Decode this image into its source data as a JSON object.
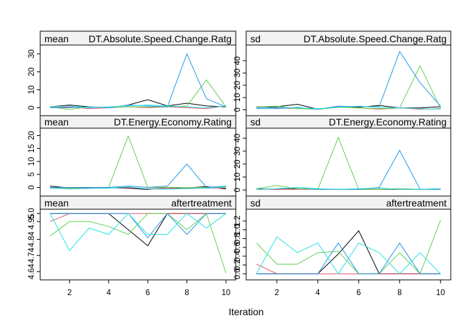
{
  "figure": {
    "xlabel": "Iteration"
  },
  "palette": [
    "#000000",
    "#DF536B",
    "#61D04F",
    "#2297E6",
    "#28E2E5"
  ],
  "chart_data": [
    {
      "type": "line",
      "stat": "mean",
      "variable": "DT.Absolute.Speed.Change.Ratg",
      "x": [
        1,
        2,
        3,
        4,
        5,
        6,
        7,
        8,
        9,
        10
      ],
      "xticks": [
        "2",
        "4",
        "6",
        "8",
        "10"
      ],
      "xlim": [
        0.5,
        10.5
      ],
      "ylim": [
        -2.5,
        33
      ],
      "yticks": [
        "0",
        "10",
        "20",
        "30"
      ],
      "series": [
        {
          "values": [
            0.5,
            1.5,
            0.5,
            0.0,
            1.5,
            4.5,
            1.0,
            2.5,
            1.0,
            0.5
          ]
        },
        {
          "values": [
            0.0,
            0.5,
            -0.5,
            0.0,
            0.5,
            0.0,
            0.5,
            0.0,
            -0.5,
            1.0
          ]
        },
        {
          "values": [
            0.5,
            -1.0,
            0.5,
            0.0,
            0.5,
            0.5,
            0.5,
            1.0,
            15.5,
            0.5
          ]
        },
        {
          "values": [
            0.0,
            0.0,
            0.5,
            0.0,
            1.5,
            1.0,
            0.5,
            30.0,
            5.0,
            0.5
          ]
        },
        {
          "values": [
            0.5,
            1.0,
            0.0,
            0.5,
            1.0,
            1.5,
            1.0,
            0.5,
            0.0,
            1.0
          ]
        }
      ]
    },
    {
      "type": "line",
      "stat": "sd",
      "variable": "DT.Absolute.Speed.Change.Ratg",
      "x": [
        1,
        2,
        3,
        4,
        5,
        6,
        7,
        8,
        9,
        10
      ],
      "xticks": [
        "2",
        "4",
        "6",
        "8",
        "10"
      ],
      "xlim": [
        0.5,
        10.5
      ],
      "ylim": [
        -2,
        50
      ],
      "yticks": [
        "0",
        "10",
        "20",
        "30",
        "40"
      ],
      "series": [
        {
          "values": [
            1.5,
            2.5,
            4.5,
            0.5,
            2.0,
            2.0,
            3.5,
            1.5,
            1.5,
            2.5
          ]
        },
        {
          "values": [
            2.0,
            1.5,
            1.0,
            0.5,
            2.5,
            1.5,
            0.5,
            1.5,
            0.5,
            1.0
          ]
        },
        {
          "values": [
            2.5,
            3.0,
            1.0,
            0.5,
            2.0,
            1.5,
            1.0,
            1.5,
            36.0,
            1.0
          ]
        },
        {
          "values": [
            1.0,
            1.0,
            2.0,
            0.5,
            3.0,
            2.5,
            2.5,
            47.5,
            22.0,
            3.0
          ]
        },
        {
          "values": [
            1.5,
            2.0,
            1.5,
            1.0,
            2.0,
            3.0,
            2.0,
            1.5,
            1.0,
            0.5
          ]
        }
      ]
    },
    {
      "type": "line",
      "stat": "mean",
      "variable": "DT.Energy.Economy.Rating",
      "x": [
        1,
        2,
        3,
        4,
        5,
        6,
        7,
        8,
        9,
        10
      ],
      "xticks": [
        "2",
        "4",
        "6",
        "8",
        "10"
      ],
      "xlim": [
        0.5,
        10.5
      ],
      "ylim": [
        -2,
        21.5
      ],
      "yticks": [
        "0",
        "5",
        "10",
        "15",
        "20"
      ],
      "series": [
        {
          "values": [
            0.5,
            -0.2,
            -0.2,
            -0.1,
            -0.3,
            -0.8,
            -0.1,
            -0.2,
            0.3,
            -0.6
          ]
        },
        {
          "values": [
            -0.2,
            -0.4,
            -0.3,
            0.0,
            -0.1,
            -0.5,
            -0.3,
            -0.5,
            -0.3,
            -0.2
          ]
        },
        {
          "values": [
            0.0,
            -0.2,
            0.0,
            0.0,
            19.8,
            0.0,
            0.0,
            -0.1,
            0.0,
            0.0
          ]
        },
        {
          "values": [
            0.0,
            0.0,
            0.0,
            0.0,
            0.5,
            0.0,
            0.5,
            9.0,
            0.0,
            0.5
          ]
        },
        {
          "values": [
            -0.3,
            -0.6,
            -0.4,
            -0.3,
            0.2,
            -0.6,
            -0.7,
            -0.4,
            -0.3,
            0.3
          ]
        }
      ]
    },
    {
      "type": "line",
      "stat": "sd",
      "variable": "DT.Energy.Economy.Rating",
      "x": [
        1,
        2,
        3,
        4,
        5,
        6,
        7,
        8,
        9,
        10
      ],
      "xticks": [
        "2",
        "4",
        "6",
        "8",
        "10"
      ],
      "xlim": [
        0.5,
        10.5
      ],
      "ylim": [
        -2,
        45
      ],
      "yticks": [
        "0",
        "10",
        "20",
        "30",
        "40"
      ],
      "series": [
        {
          "values": [
            1.0,
            0.5,
            1.0,
            0.5,
            0.5,
            0.5,
            0.5,
            0.5,
            0.5,
            1.0
          ]
        },
        {
          "values": [
            0.5,
            0.5,
            0.5,
            0.5,
            0.5,
            0.5,
            0.5,
            1.0,
            0.5,
            0.5
          ]
        },
        {
          "values": [
            1.0,
            3.5,
            1.0,
            0.5,
            40.5,
            0.5,
            0.5,
            1.0,
            0.5,
            0.5
          ]
        },
        {
          "values": [
            0.5,
            1.0,
            2.0,
            0.5,
            0.5,
            0.5,
            2.0,
            30.5,
            0.5,
            0.5
          ]
        },
        {
          "values": [
            0.5,
            1.0,
            2.0,
            1.0,
            0.5,
            1.0,
            1.5,
            0.5,
            0.5,
            1.0
          ]
        }
      ]
    },
    {
      "type": "line",
      "stat": "mean",
      "variable": "aftertreatment",
      "x": [
        1,
        2,
        3,
        4,
        5,
        6,
        7,
        8,
        9,
        10
      ],
      "xticks": [
        "2",
        "4",
        "6",
        "8",
        "10"
      ],
      "xlim": [
        0.5,
        10.5
      ],
      "ylim": [
        4.61,
        5.005
      ],
      "yticks": [
        "4.64",
        "4.74",
        "4.84",
        "4.95",
        "5.0"
      ],
      "series": [
        {
          "values": [
            5.0,
            5.0,
            5.0,
            5.0,
            4.9,
            4.8,
            5.0,
            5.0,
            5.0,
            5.0
          ]
        },
        {
          "values": [
            4.95,
            5.0,
            5.0,
            5.0,
            5.0,
            5.0,
            5.0,
            5.0,
            5.0,
            5.0
          ]
        },
        {
          "values": [
            4.86,
            4.95,
            4.95,
            4.92,
            4.87,
            5.0,
            5.0,
            4.9,
            5.0,
            4.63
          ]
        },
        {
          "values": [
            5.0,
            5.0,
            5.0,
            5.0,
            5.0,
            4.85,
            5.0,
            4.87,
            5.0,
            5.0
          ]
        },
        {
          "values": [
            5.0,
            4.77,
            4.91,
            4.87,
            5.0,
            4.87,
            4.87,
            5.0,
            4.91,
            5.0
          ]
        }
      ]
    },
    {
      "type": "line",
      "stat": "sd",
      "variable": "aftertreatment",
      "x": [
        1,
        2,
        3,
        4,
        5,
        6,
        7,
        8,
        9,
        10
      ],
      "xticks": [
        "2",
        "4",
        "6",
        "8",
        "10"
      ],
      "xlim": [
        0.5,
        10.5
      ],
      "ylim": [
        -0.06,
        1.39
      ],
      "yticks": [
        "0.0",
        "0.2",
        "0.4",
        "0.6",
        "0.8",
        "1.0",
        "1.2"
      ],
      "series": [
        {
          "values": [
            0.0,
            0.0,
            0.0,
            0.0,
            0.45,
            0.98,
            0.0,
            0.0,
            0.0,
            0.0
          ]
        },
        {
          "values": [
            0.22,
            0.0,
            0.0,
            0.0,
            0.0,
            0.0,
            0.0,
            0.0,
            0.0,
            0.0
          ]
        },
        {
          "values": [
            0.7,
            0.22,
            0.22,
            0.48,
            0.51,
            0.0,
            0.0,
            0.48,
            0.0,
            1.22
          ]
        },
        {
          "values": [
            0.0,
            0.0,
            0.0,
            0.0,
            0.7,
            0.0,
            0.0,
            0.7,
            0.0,
            0.0
          ]
        },
        {
          "values": [
            0.0,
            0.84,
            0.48,
            0.7,
            0.0,
            0.7,
            0.48,
            0.0,
            0.48,
            0.0
          ]
        }
      ]
    }
  ]
}
